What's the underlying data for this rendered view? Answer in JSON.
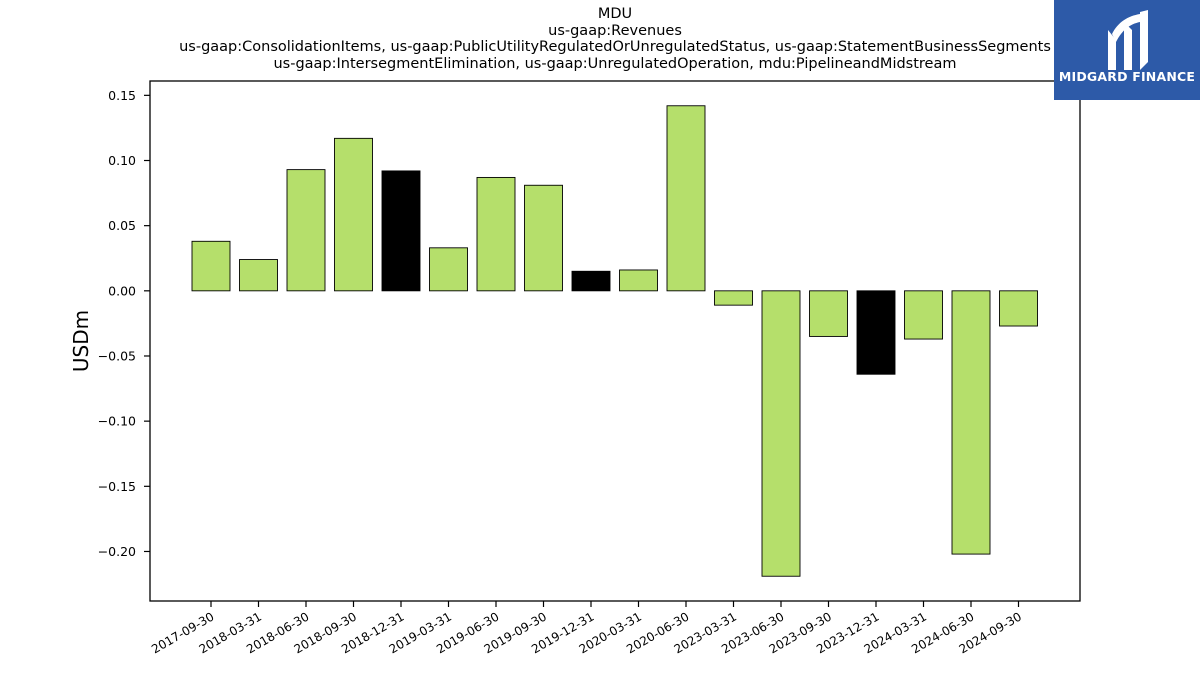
{
  "chart_data": {
    "type": "bar",
    "title_lines": [
      "MDU",
      "us-gaap:Revenues",
      "us-gaap:ConsolidationItems, us-gaap:PublicUtilityRegulatedOrUnregulatedStatus, us-gaap:StatementBusinessSegments",
      "us-gaap:IntersegmentElimination, us-gaap:UnregulatedOperation, mdu:PipelineandMidstream"
    ],
    "ylabel": "USDm",
    "xlabel": "",
    "categories": [
      "2017-09-30",
      "2018-03-31",
      "2018-06-30",
      "2018-09-30",
      "2018-12-31",
      "2019-03-31",
      "2019-06-30",
      "2019-09-30",
      "2019-12-31",
      "2020-03-31",
      "2020-06-30",
      "2023-03-31",
      "2023-06-30",
      "2023-09-30",
      "2023-12-31",
      "2024-03-31",
      "2024-06-30",
      "2024-09-30"
    ],
    "values": [
      0.038,
      0.024,
      0.093,
      0.117,
      0.092,
      0.033,
      0.087,
      0.081,
      0.015,
      0.016,
      0.142,
      -0.011,
      -0.219,
      -0.035,
      -0.064,
      -0.037,
      -0.202,
      -0.027
    ],
    "highlight": [
      false,
      false,
      false,
      false,
      true,
      false,
      false,
      false,
      true,
      false,
      false,
      false,
      false,
      false,
      true,
      false,
      false,
      false
    ],
    "ylim": [
      -0.238,
      0.161
    ],
    "yticks": [
      0.15,
      0.1,
      0.05,
      0.0,
      -0.05,
      -0.1,
      -0.15,
      -0.2
    ],
    "ytick_labels": [
      "0.15",
      "0.10",
      "0.05",
      "0.00",
      "−0.05",
      "−0.10",
      "−0.15",
      "−0.20"
    ],
    "colors": {
      "bar": "#b5df6b",
      "highlight": "#000000",
      "edge": "#000000"
    },
    "grid": false,
    "legend": "none"
  },
  "logo": {
    "text": "MIDGARD FINANCE",
    "background": "#2d5aa8",
    "icon": "midgard-logo-icon"
  }
}
